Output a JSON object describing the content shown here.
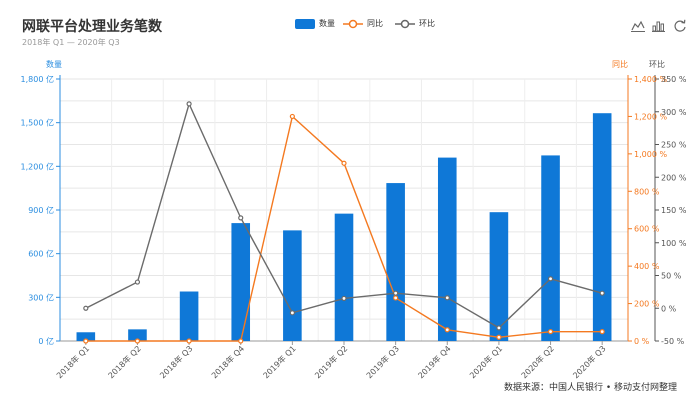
{
  "header": {
    "title": "网联平台处理业务笔数",
    "subtitle": "2018年 Q1 — 2020年 Q3",
    "source": "数据来源：中国人民银行 • 移动支付网整理"
  },
  "legend": {
    "items": [
      {
        "label": "数量",
        "type": "bar",
        "color": "#0f78d7"
      },
      {
        "label": "同比",
        "type": "line",
        "color": "#f47920"
      },
      {
        "label": "环比",
        "type": "line",
        "color": "#666666"
      }
    ]
  },
  "toolbox": {
    "icons": [
      "line-chart-icon",
      "bar-chart-icon",
      "refresh-icon"
    ]
  },
  "colors": {
    "bar": "#0f78d7",
    "yoy": "#f47920",
    "qoq": "#6b6b6b",
    "axis_left": "#2b8ee0",
    "axis_yoy": "#f47920",
    "axis_qoq": "#555555"
  },
  "chart_data": {
    "type": "bar",
    "categories": [
      "2018年 Q1",
      "2018年 Q2",
      "2018年 Q3",
      "2018年 Q4",
      "2019年 Q1",
      "2019年 Q2",
      "2019年 Q3",
      "2019年 Q4",
      "2020年 Q1",
      "2020年 Q2",
      "2020年 Q3"
    ],
    "series": [
      {
        "name": "数量",
        "type": "bar",
        "axis": "left",
        "values": [
          60,
          80,
          340,
          810,
          760,
          875,
          1085,
          1260,
          885,
          1275,
          1565
        ]
      },
      {
        "name": "同比",
        "type": "line",
        "axis": "yoy",
        "values": [
          0,
          0,
          0,
          0,
          1200,
          950,
          230,
          60,
          20,
          50,
          50
        ]
      },
      {
        "name": "环比",
        "type": "line",
        "axis": "qoq",
        "values": [
          0,
          40,
          312,
          138,
          -7,
          15,
          23,
          16,
          -30,
          45,
          23
        ]
      }
    ],
    "axes": {
      "left": {
        "label": "数量",
        "min": 0,
        "max": 1800,
        "ticks": [
          "0 亿",
          "300 亿",
          "600 亿",
          "900 亿",
          "1,200 亿",
          "1,500 亿",
          "1,800 亿"
        ]
      },
      "yoy": {
        "label": "同比",
        "min": 0,
        "max": 1400,
        "ticks": [
          "0 %",
          "200 %",
          "400 %",
          "600 %",
          "800 %",
          "1,000 %",
          "1,200 %",
          "1,400 %"
        ]
      },
      "qoq": {
        "label": "环比",
        "min": -50,
        "max": 350,
        "ticks": [
          "-50 %",
          "0 %",
          "50 %",
          "100 %",
          "150 %",
          "200 %",
          "250 %",
          "300 %",
          "350 %"
        ]
      }
    },
    "grid": true,
    "legend_position": "top-center"
  }
}
